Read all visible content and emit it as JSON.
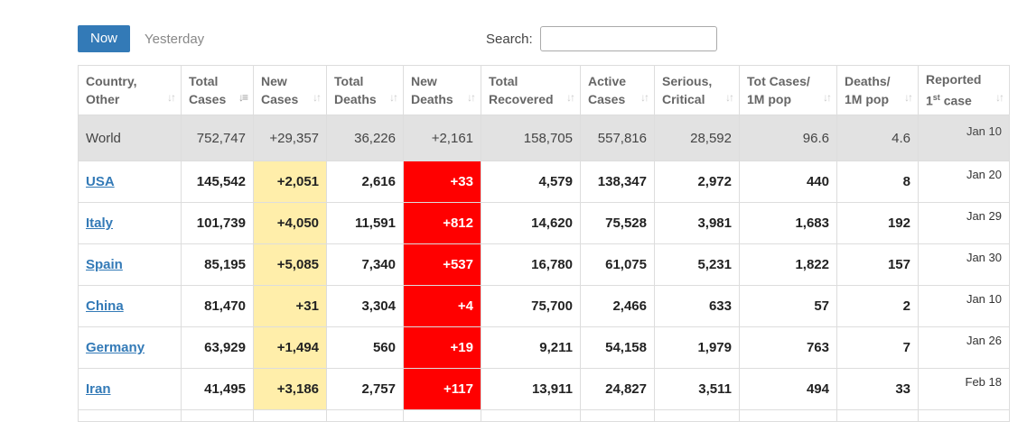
{
  "tabs": {
    "now": "Now",
    "yesterday": "Yesterday"
  },
  "search": {
    "label": "Search:",
    "value": ""
  },
  "columns": [
    {
      "line1": "Country,",
      "line2": "Other"
    },
    {
      "line1": "Total",
      "line2": "Cases"
    },
    {
      "line1": "New",
      "line2": "Cases"
    },
    {
      "line1": "Total",
      "line2": "Deaths"
    },
    {
      "line1": "New",
      "line2": "Deaths"
    },
    {
      "line1": "Total",
      "line2": "Recovered"
    },
    {
      "line1": "Active",
      "line2": "Cases"
    },
    {
      "line1": "Serious,",
      "line2": "Critical"
    },
    {
      "line1": "Tot Cases/",
      "line2": "1M pop"
    },
    {
      "line1": "Deaths/",
      "line2": "1M pop"
    },
    {
      "line1": "Reported",
      "line2_pre": "1",
      "line2_sup": "st",
      "line2_post": " case"
    }
  ],
  "sort_icon": "sort-arrows-icon",
  "world": {
    "country": "World",
    "total_cases": "752,747",
    "new_cases": "+29,357",
    "total_deaths": "36,226",
    "new_deaths": "+2,161",
    "total_recovered": "158,705",
    "active_cases": "557,816",
    "serious": "28,592",
    "cases_per_m": "96.6",
    "deaths_per_m": "4.6",
    "reported": "Jan 10"
  },
  "rows": [
    {
      "country": "USA",
      "total_cases": "145,542",
      "new_cases": "+2,051",
      "total_deaths": "2,616",
      "new_deaths": "+33",
      "total_recovered": "4,579",
      "active_cases": "138,347",
      "serious": "2,972",
      "cases_per_m": "440",
      "deaths_per_m": "8",
      "reported": "Jan 20"
    },
    {
      "country": "Italy",
      "total_cases": "101,739",
      "new_cases": "+4,050",
      "total_deaths": "11,591",
      "new_deaths": "+812",
      "total_recovered": "14,620",
      "active_cases": "75,528",
      "serious": "3,981",
      "cases_per_m": "1,683",
      "deaths_per_m": "192",
      "reported": "Jan 29"
    },
    {
      "country": "Spain",
      "total_cases": "85,195",
      "new_cases": "+5,085",
      "total_deaths": "7,340",
      "new_deaths": "+537",
      "total_recovered": "16,780",
      "active_cases": "61,075",
      "serious": "5,231",
      "cases_per_m": "1,822",
      "deaths_per_m": "157",
      "reported": "Jan 30"
    },
    {
      "country": "China",
      "total_cases": "81,470",
      "new_cases": "+31",
      "total_deaths": "3,304",
      "new_deaths": "+4",
      "total_recovered": "75,700",
      "active_cases": "2,466",
      "serious": "633",
      "cases_per_m": "57",
      "deaths_per_m": "2",
      "reported": "Jan 10"
    },
    {
      "country": "Germany",
      "total_cases": "63,929",
      "new_cases": "+1,494",
      "total_deaths": "560",
      "new_deaths": "+19",
      "total_recovered": "9,211",
      "active_cases": "54,158",
      "serious": "1,979",
      "cases_per_m": "763",
      "deaths_per_m": "7",
      "reported": "Jan 26"
    },
    {
      "country": "Iran",
      "total_cases": "41,495",
      "new_cases": "+3,186",
      "total_deaths": "2,757",
      "new_deaths": "+117",
      "total_recovered": "13,911",
      "active_cases": "24,827",
      "serious": "3,511",
      "cases_per_m": "494",
      "deaths_per_m": "33",
      "reported": "Feb 18"
    }
  ],
  "colors": {
    "accent": "#337ab7",
    "new_cases_bg": "#ffeeaa",
    "new_deaths_bg": "#ff0000",
    "world_bg": "#e2e2e2"
  }
}
